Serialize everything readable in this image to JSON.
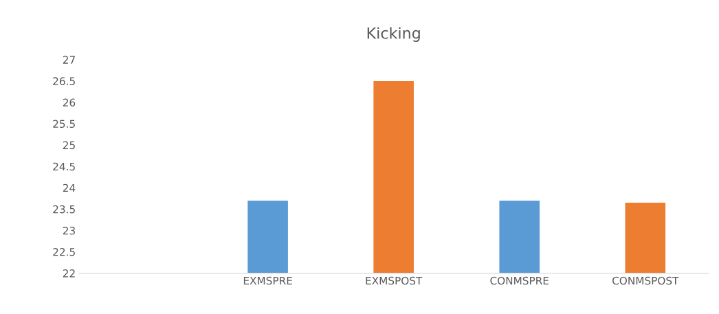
{
  "chart_data": {
    "type": "bar",
    "title": "Kicking",
    "categories": [
      null,
      "EXMSPRE",
      "EXMSPOST",
      "CONMSPRE",
      "CONMSPOST"
    ],
    "values": [
      null,
      23.7,
      26.5,
      23.7,
      23.65
    ],
    "colors": [
      "#5b9bd5",
      "#5b9bd5",
      "#ed7d31",
      "#5b9bd5",
      "#ed7d31"
    ],
    "ylim": [
      22,
      27
    ],
    "yticks": [
      22,
      22.5,
      23,
      23.5,
      24,
      24.5,
      25,
      25.5,
      26,
      26.5,
      27
    ],
    "grid": false
  }
}
